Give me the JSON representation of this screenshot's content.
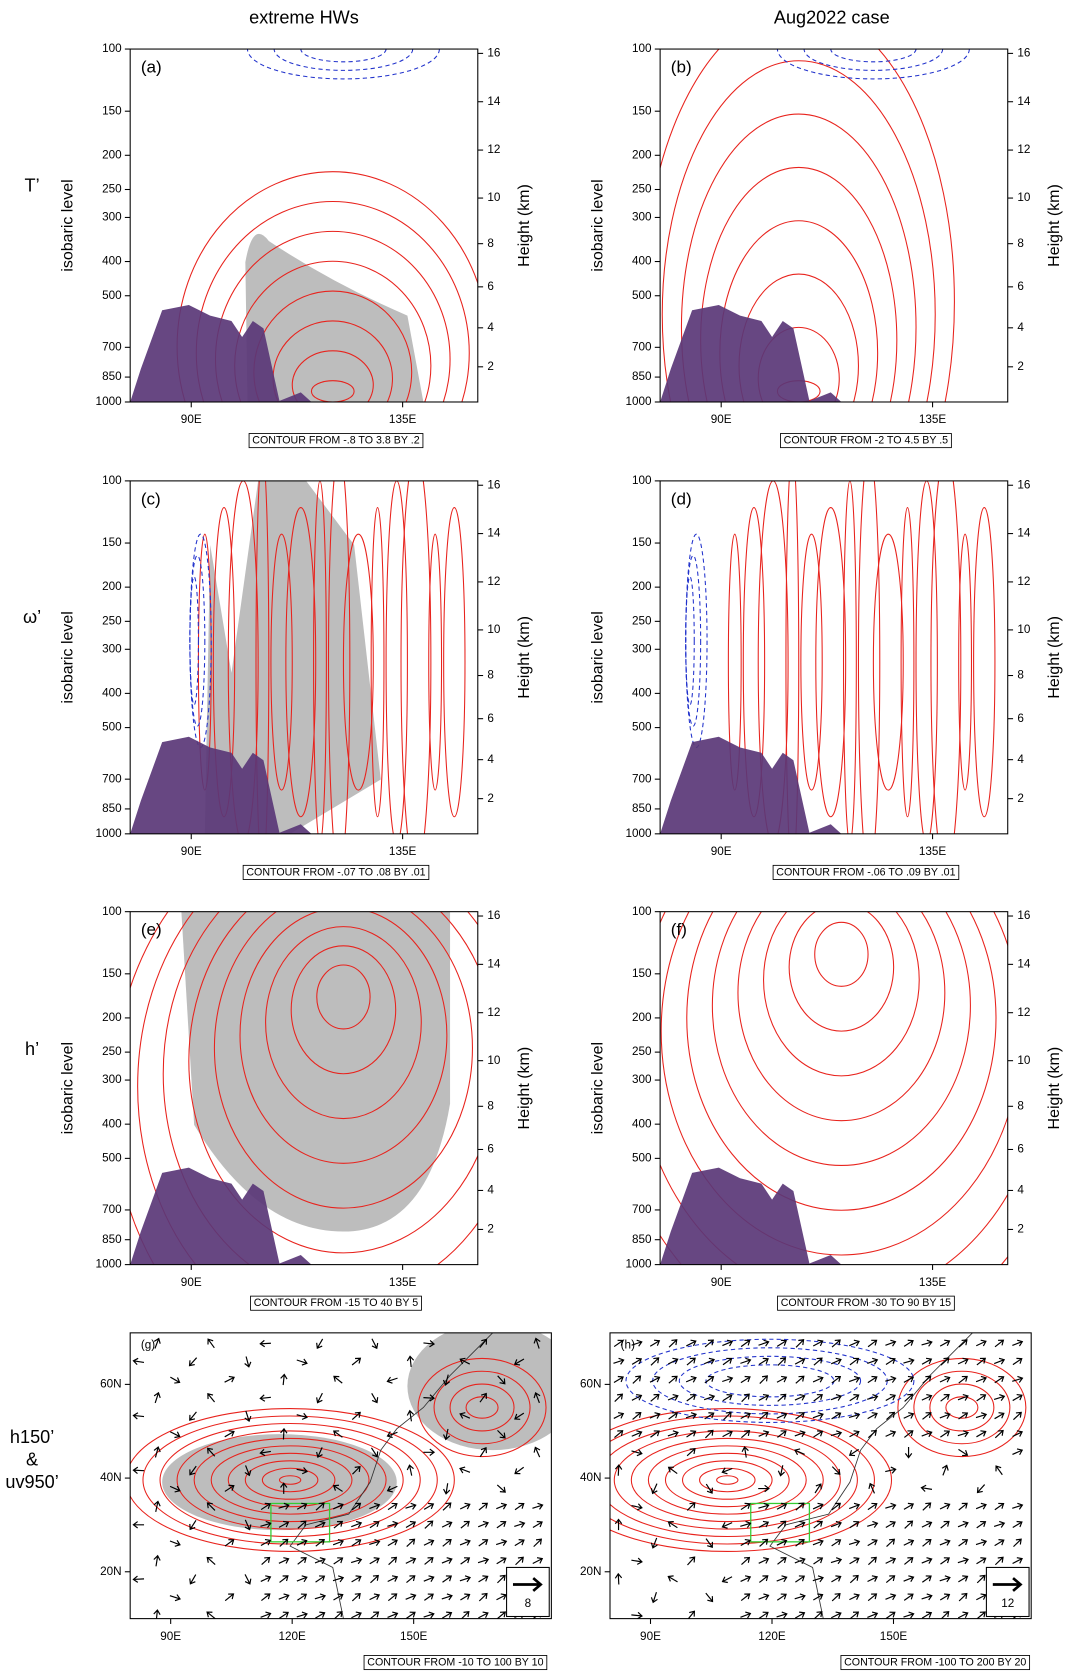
{
  "columns": [
    "extreme HWs",
    "Aug2022 case"
  ],
  "rows": [
    [
      "T’"
    ],
    [
      "ω’"
    ],
    [
      "h’"
    ],
    [
      "h150’",
      "&",
      "uv950’"
    ]
  ],
  "panels": [
    {
      "label": "(a)",
      "contour": "CONTOUR FROM -.8 TO 3.8 BY .2"
    },
    {
      "label": "(b)",
      "contour": "CONTOUR FROM -2 TO 4.5 BY .5"
    },
    {
      "label": "(c)",
      "contour": "CONTOUR FROM -.07 TO .08 BY .01"
    },
    {
      "label": "(d)",
      "contour": "CONTOUR FROM -.06 TO .09 BY .01"
    },
    {
      "label": "(e)",
      "contour": "CONTOUR FROM -15 TO 40 BY 5"
    },
    {
      "label": "(f)",
      "contour": "CONTOUR FROM -30 TO 90 BY 15"
    },
    {
      "label": "(g)",
      "contour": "CONTOUR FROM -10 TO 100 BY 10",
      "vector_ref": "8"
    },
    {
      "label": "(h)",
      "contour": "CONTOUR FROM -100 TO 200 BY 20",
      "vector_ref": "12"
    }
  ],
  "section_axes": {
    "pressure_label": "isobaric level",
    "height_label": "Height (km)",
    "pressure_lim": [
      1000,
      100
    ],
    "pressure_ticks": [
      100,
      150,
      200,
      250,
      300,
      400,
      500,
      700,
      850,
      1000
    ],
    "height_ticks": [
      2,
      4,
      6,
      8,
      10,
      12,
      14,
      16
    ],
    "lon_lim": [
      77,
      151
    ],
    "lon_ticks": [
      {
        "value": 90,
        "label": "90E"
      },
      {
        "value": 135,
        "label": "135E"
      }
    ]
  },
  "map_axes": {
    "lon_lim": [
      80,
      184
    ],
    "lon_ticks": [
      {
        "value": 90,
        "label": "90E"
      },
      {
        "value": 120,
        "label": "120E"
      },
      {
        "value": 150,
        "label": "150E"
      }
    ],
    "lat_lim": [
      10,
      71
    ],
    "lat_ticks": [
      {
        "value": 20,
        "label": "20N"
      },
      {
        "value": 40,
        "label": "40N"
      },
      {
        "value": 60,
        "label": "60N"
      }
    ]
  }
}
